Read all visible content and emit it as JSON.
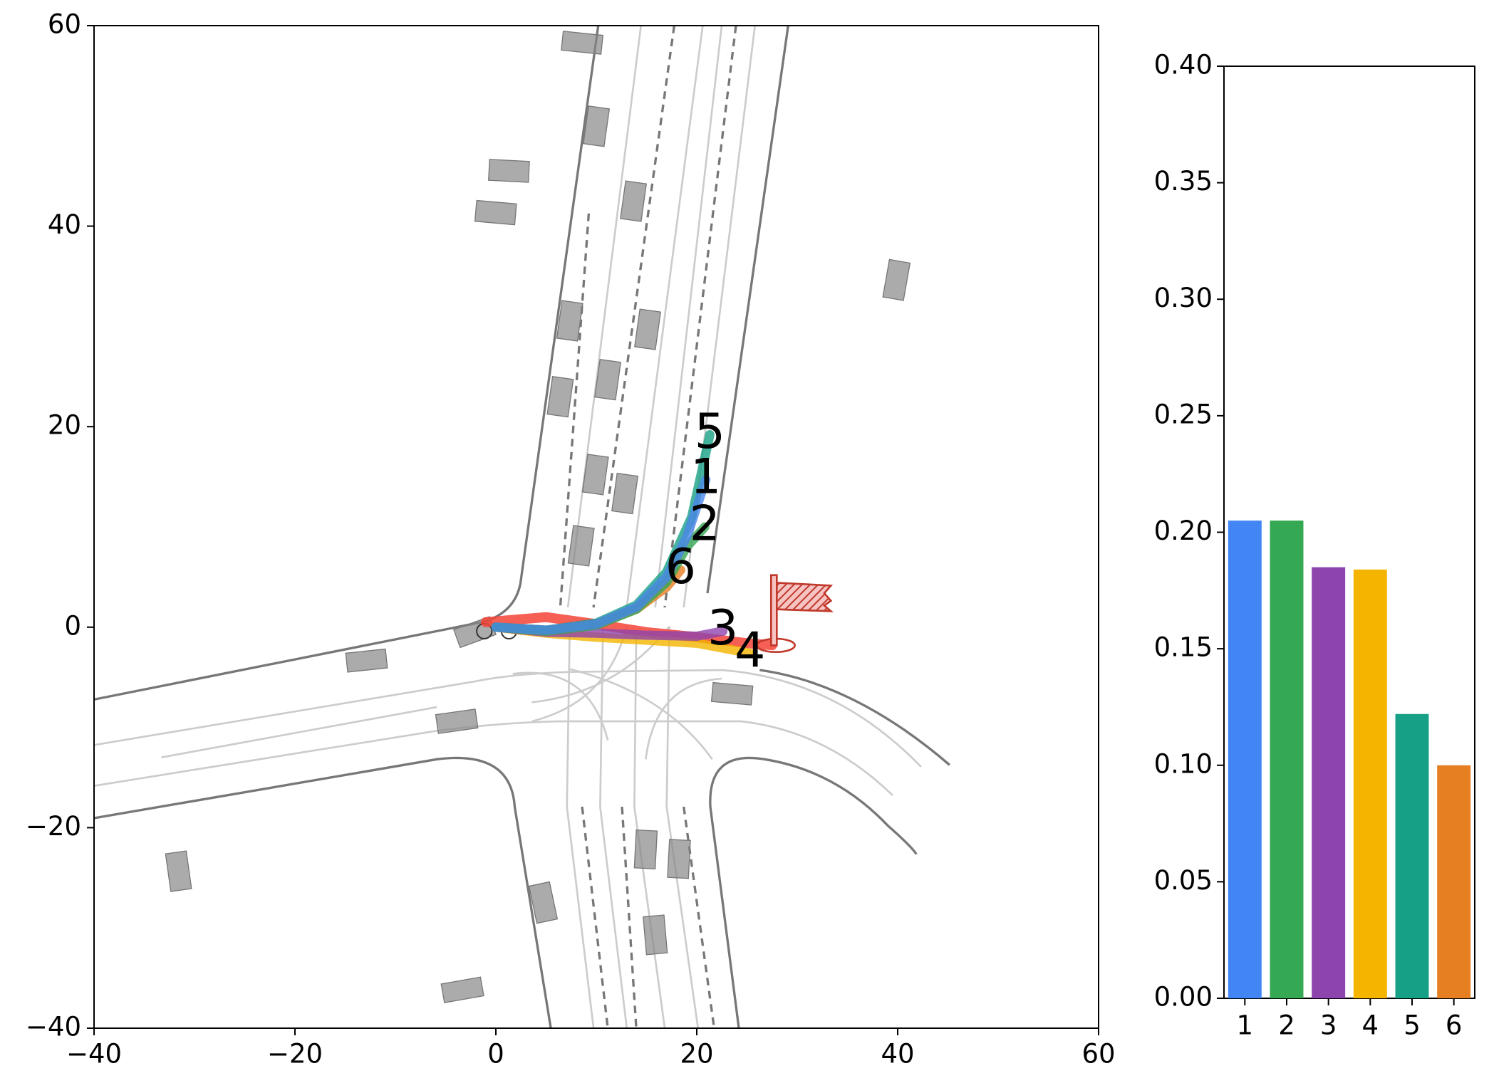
{
  "chart_data": [
    {
      "type": "trajectory",
      "xlim": [
        -40,
        60
      ],
      "ylim": [
        -40,
        60
      ],
      "xticks": [
        {
          "value": -40,
          "label": "−40"
        },
        {
          "value": -20,
          "label": "−20"
        },
        0,
        20,
        40,
        60
      ],
      "yticks": [
        {
          "value": -40,
          "label": "−40"
        },
        {
          "value": -20,
          "label": "−20"
        },
        0,
        20,
        40,
        60
      ],
      "ground_truth": {
        "color": "#f44336",
        "x": [
          -1,
          5,
          10,
          15,
          20,
          25,
          27.5
        ],
        "y": [
          0.5,
          1,
          0.3,
          -0.5,
          -1,
          -1.6,
          -1.8
        ]
      },
      "series": [
        {
          "name": "1",
          "color": "#4a86e8",
          "x": [
            0,
            5,
            10,
            14,
            17,
            19,
            20.9
          ],
          "y": [
            0,
            -0.3,
            0.3,
            2,
            5,
            9,
            14.7
          ]
        },
        {
          "name": "2",
          "color": "#34a853",
          "x": [
            0,
            5,
            10,
            14,
            17,
            19,
            20.8
          ],
          "y": [
            0,
            -0.4,
            0.2,
            1.8,
            4.5,
            8,
            10
          ]
        },
        {
          "name": "3",
          "color": "#8e44ad",
          "x": [
            0,
            5,
            10,
            15,
            20,
            22.6
          ],
          "y": [
            0,
            -0.5,
            -0.6,
            -0.8,
            -0.9,
            -0.4
          ]
        },
        {
          "name": "4",
          "color": "#f4b400",
          "x": [
            0,
            5,
            10,
            15,
            20,
            25.3
          ],
          "y": [
            0,
            -0.6,
            -1,
            -1.3,
            -1.6,
            -2.6
          ]
        },
        {
          "name": "5",
          "color": "#16a085",
          "x": [
            0,
            5,
            10,
            14,
            17,
            19.5,
            21.3
          ],
          "y": [
            0,
            -0.3,
            0.4,
            2.2,
            5.5,
            11,
            19.2
          ]
        },
        {
          "name": "6",
          "color": "#e67e22",
          "x": [
            0,
            5,
            10,
            14,
            17,
            18.4
          ],
          "y": [
            0,
            -0.3,
            0.3,
            1.8,
            4,
            5.7
          ]
        }
      ]
    },
    {
      "type": "bar",
      "categories": [
        "1",
        "2",
        "3",
        "4",
        "5",
        "6"
      ],
      "values": [
        0.205,
        0.205,
        0.185,
        0.184,
        0.122,
        0.1
      ],
      "colors": [
        "#4285f4",
        "#34a853",
        "#8e44ad",
        "#f4b400",
        "#16a085",
        "#e67e22"
      ],
      "ylim": [
        0,
        0.4
      ],
      "yticks": [
        {
          "value": 0,
          "label": "0.00"
        },
        {
          "value": 0.05,
          "label": "0.05"
        },
        {
          "value": 0.1,
          "label": "0.10"
        },
        {
          "value": 0.15,
          "label": "0.15"
        },
        {
          "value": 0.2,
          "label": "0.20"
        },
        {
          "value": 0.25,
          "label": "0.25"
        },
        {
          "value": 0.3,
          "label": "0.30"
        },
        {
          "value": 0.35,
          "label": "0.35"
        },
        {
          "value": 0.4,
          "label": "0.40"
        }
      ]
    }
  ]
}
